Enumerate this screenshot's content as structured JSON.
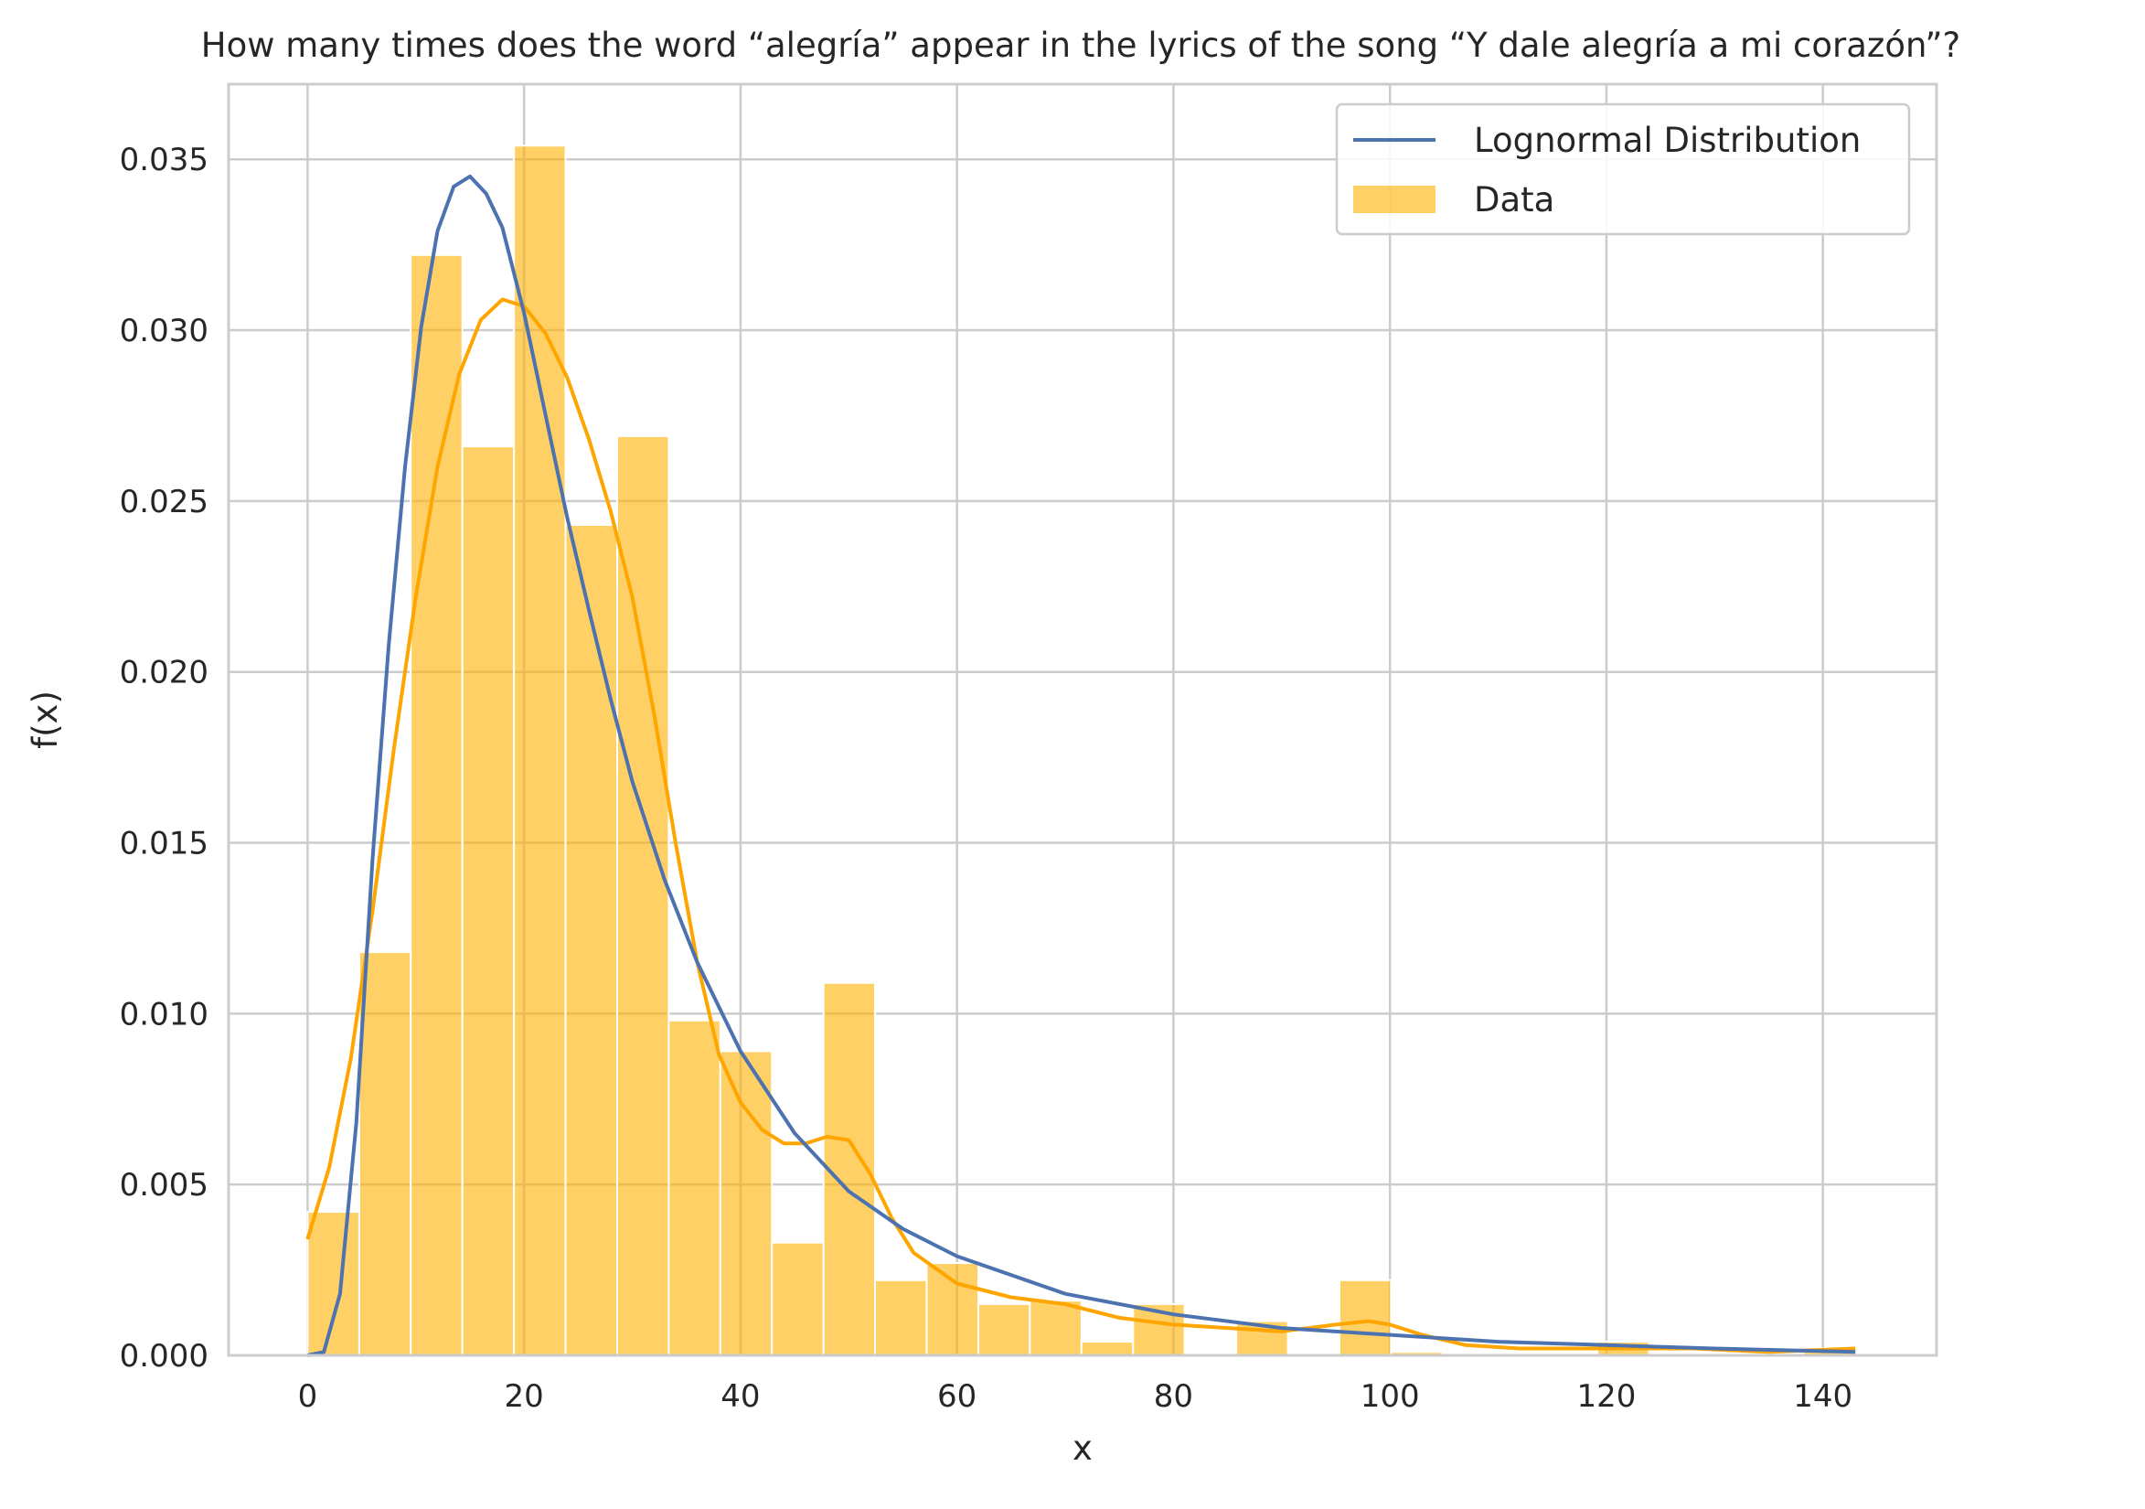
{
  "chart_data": {
    "type": "bar",
    "title": "How many times does the word “alegría” appear in the lyrics of the song “Y dale alegría a mi corazón”?",
    "xlabel": "x",
    "ylabel": "f(x)",
    "xlim": [
      -7.3,
      150.5
    ],
    "ylim": [
      0,
      0.0372
    ],
    "xticks": [
      0,
      20,
      40,
      60,
      80,
      100,
      120,
      140
    ],
    "yticks": [
      0.0,
      0.005,
      0.01,
      0.015,
      0.02,
      0.025,
      0.03,
      0.035
    ],
    "xtick_labels": [
      "0",
      "20",
      "40",
      "60",
      "80",
      "100",
      "120",
      "140"
    ],
    "ytick_labels": [
      "0.000",
      "0.005",
      "0.010",
      "0.015",
      "0.020",
      "0.025",
      "0.030",
      "0.035"
    ],
    "grid": true,
    "legend_position": "top-right",
    "histogram": {
      "name": "Data",
      "color": "#FFB000",
      "alpha": 0.6,
      "bin_edges": [
        0.0,
        4.77,
        9.53,
        14.3,
        19.07,
        23.83,
        28.6,
        33.37,
        38.13,
        42.9,
        47.67,
        52.43,
        57.2,
        61.97,
        66.73,
        71.5,
        76.27,
        81.03,
        85.8,
        90.57,
        95.33,
        100.1,
        104.87,
        109.63,
        114.4,
        119.17,
        123.93,
        128.7,
        133.47,
        138.23,
        143.0
      ],
      "values": [
        0.0042,
        0.0118,
        0.0322,
        0.0266,
        0.0354,
        0.0243,
        0.0269,
        0.0098,
        0.0089,
        0.0033,
        0.0109,
        0.0022,
        0.0027,
        0.0015,
        0.0016,
        0.0004,
        0.0015,
        0.0,
        0.001,
        0.0,
        0.0022,
        0.0001,
        0.0,
        0.0,
        0.0,
        0.0004,
        0.0,
        0.0,
        0.0,
        0.0002
      ]
    },
    "series": [
      {
        "name": "Lognormal Distribution",
        "color": "#4C72B0",
        "x": [
          0,
          1.5,
          3,
          4.5,
          6,
          7.5,
          9,
          10.5,
          12,
          13.5,
          15,
          16.5,
          18,
          20,
          22,
          24,
          26,
          28,
          30,
          33,
          36,
          40,
          45,
          50,
          55,
          60,
          70,
          80,
          90,
          100,
          110,
          120,
          130,
          143
        ],
        "y": [
          0.0,
          0.0001,
          0.0018,
          0.0068,
          0.0145,
          0.0208,
          0.026,
          0.0301,
          0.0329,
          0.0342,
          0.0345,
          0.034,
          0.033,
          0.0305,
          0.0275,
          0.0245,
          0.0218,
          0.0192,
          0.0168,
          0.0139,
          0.0115,
          0.0089,
          0.0065,
          0.0048,
          0.0037,
          0.0029,
          0.0018,
          0.0012,
          0.0008,
          0.0006,
          0.0004,
          0.0003,
          0.0002,
          0.0001
        ]
      },
      {
        "name": "",
        "color": "#FFA500",
        "x": [
          0,
          2,
          4,
          6,
          8,
          10,
          12,
          14,
          16,
          18,
          20,
          22,
          24,
          26,
          28,
          30,
          32,
          34,
          36,
          38,
          40,
          42,
          44,
          46,
          48,
          50,
          52,
          54,
          56,
          60,
          65,
          70,
          75,
          80,
          85,
          90,
          95,
          98,
          100,
          103,
          107,
          112,
          120,
          128,
          135,
          143
        ],
        "y": [
          0.0034,
          0.0055,
          0.0087,
          0.013,
          0.0178,
          0.0222,
          0.026,
          0.0287,
          0.0303,
          0.0309,
          0.0307,
          0.0299,
          0.0286,
          0.0268,
          0.0247,
          0.0222,
          0.0188,
          0.015,
          0.0115,
          0.0088,
          0.0074,
          0.0066,
          0.0062,
          0.0062,
          0.0064,
          0.0063,
          0.0053,
          0.004,
          0.003,
          0.0021,
          0.0017,
          0.0015,
          0.0011,
          0.0009,
          0.0008,
          0.0007,
          0.0009,
          0.001,
          0.0009,
          0.0006,
          0.0003,
          0.0002,
          0.0002,
          0.0002,
          0.0001,
          0.0002
        ]
      }
    ],
    "legend": [
      {
        "label": "Lognormal Distribution",
        "kind": "line",
        "color": "#4C72B0"
      },
      {
        "label": "Data",
        "kind": "patch",
        "color": "#FFB000"
      }
    ]
  }
}
